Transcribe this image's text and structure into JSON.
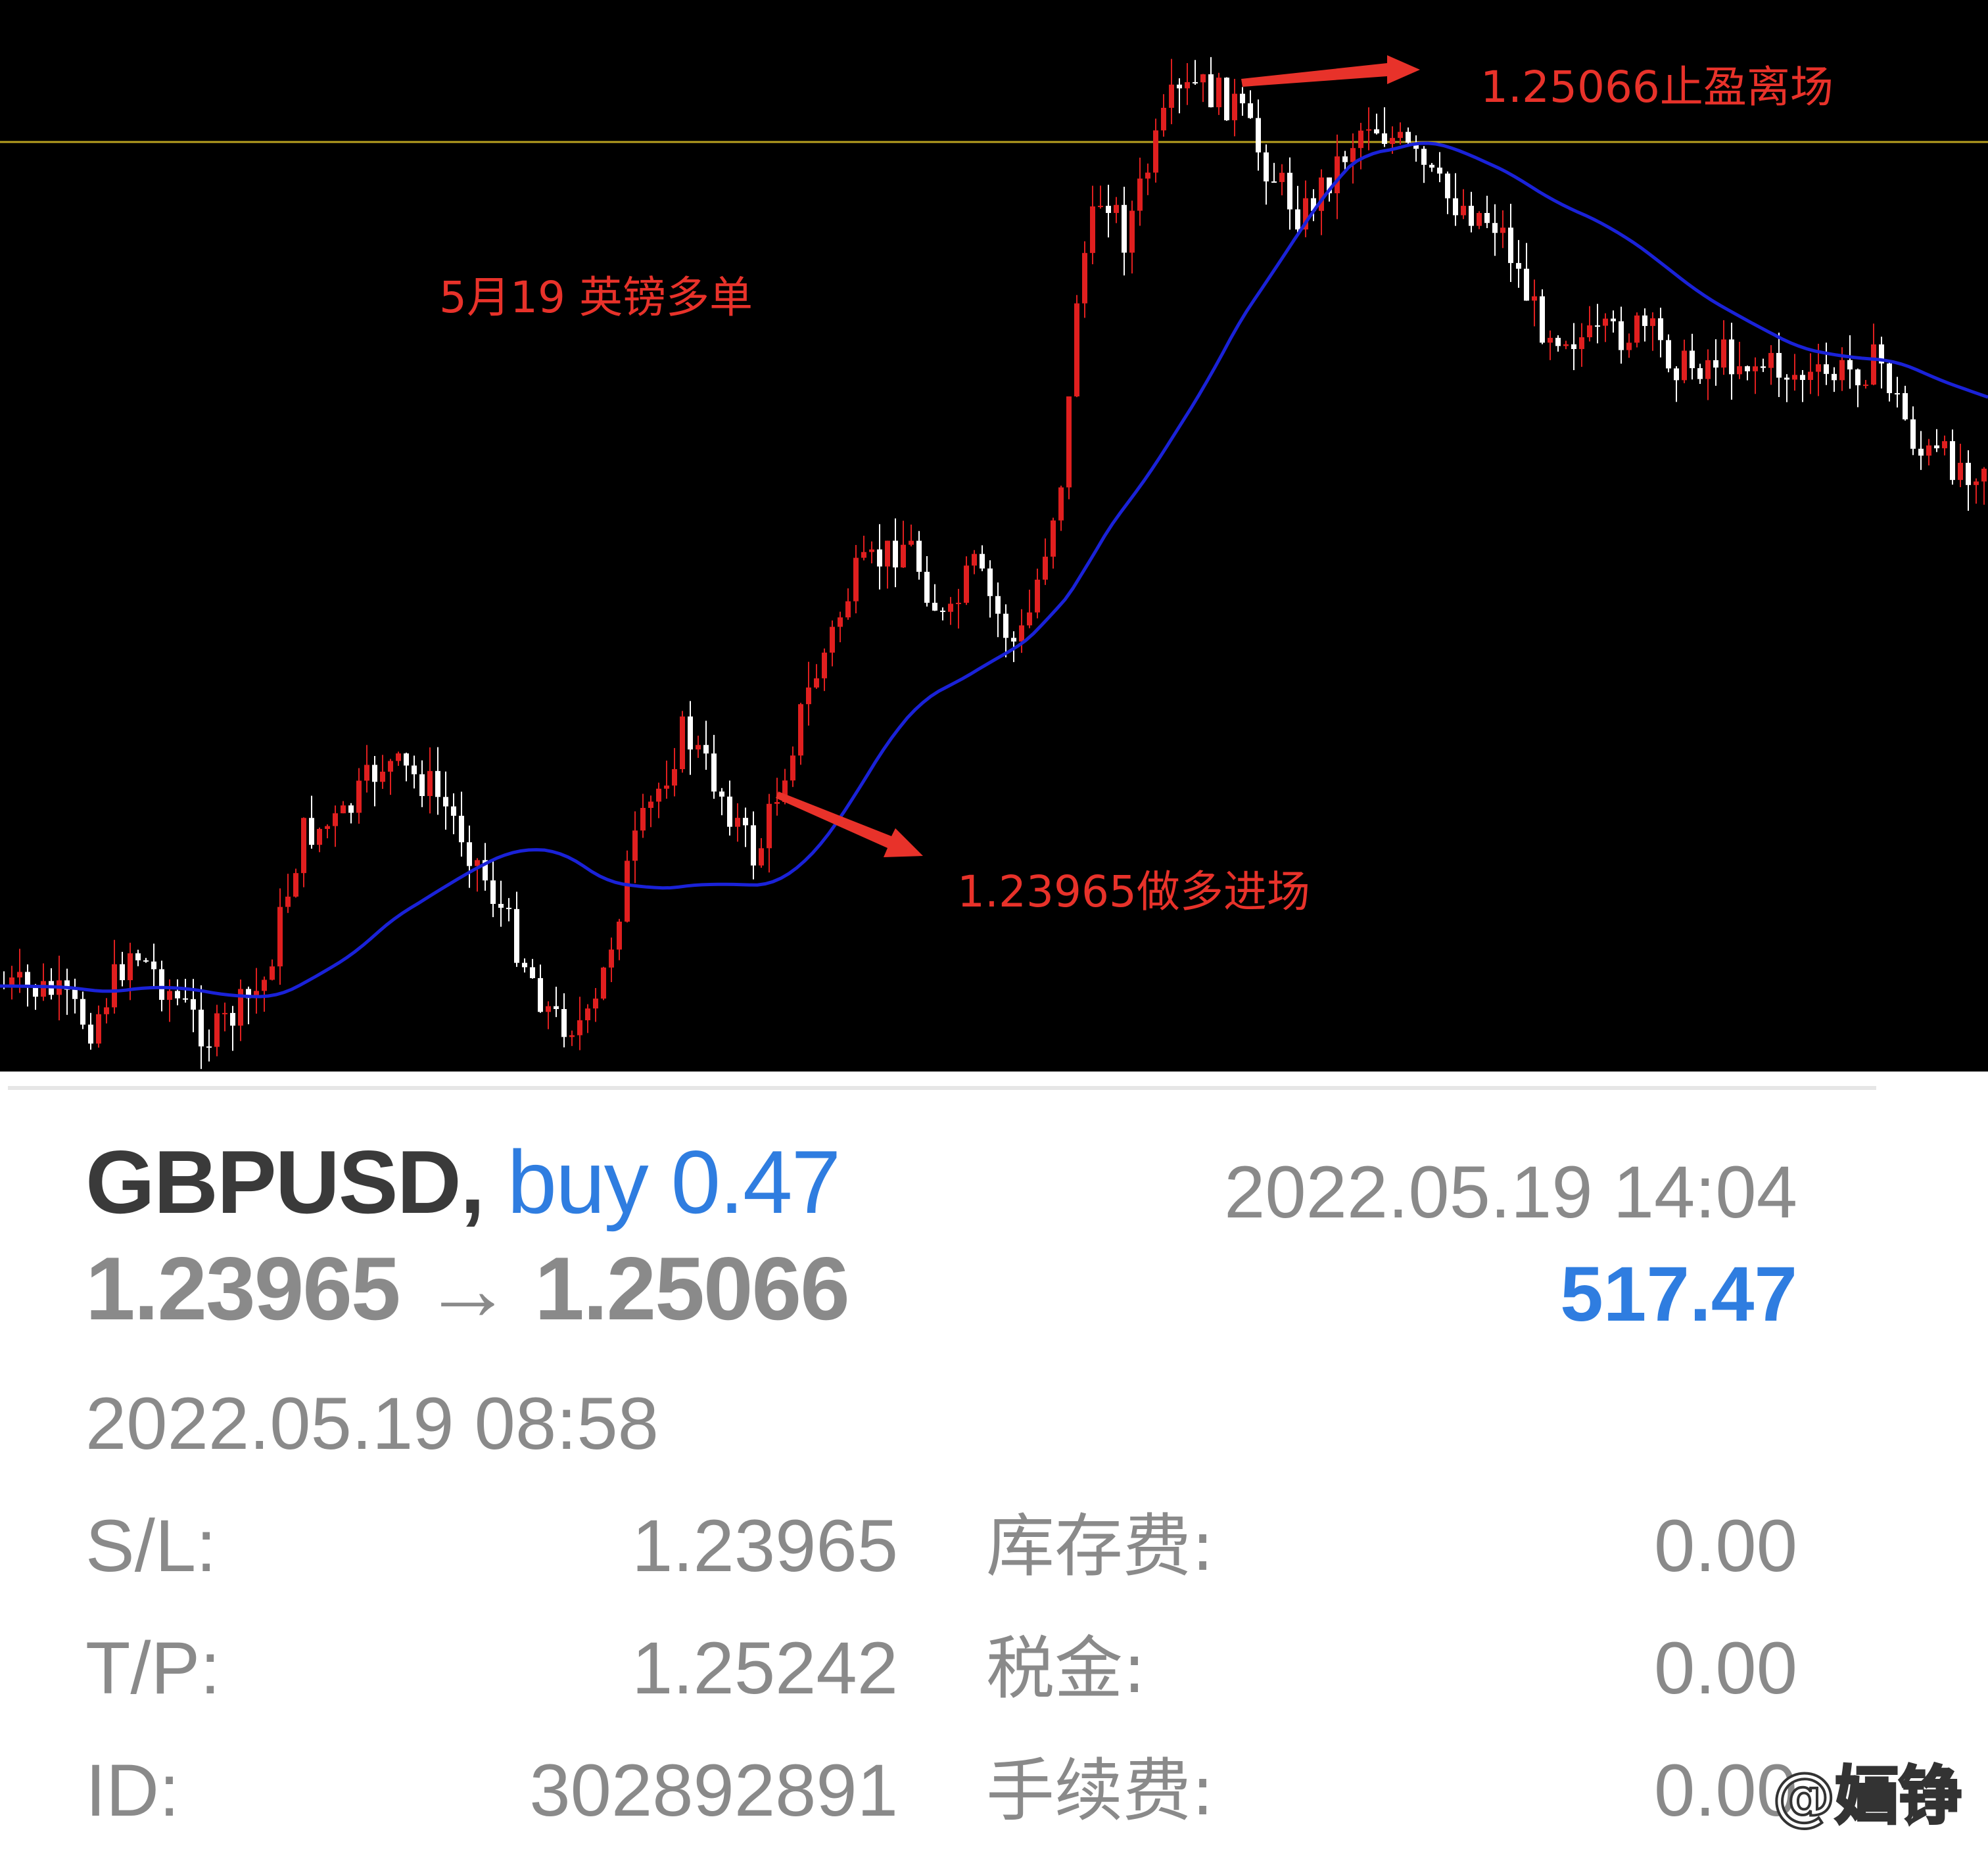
{
  "chart": {
    "title_annotation": "5月19 英镑多单",
    "entry_annotation": "1.23965做多进场",
    "exit_annotation": "1.25066止盈离场",
    "candle_up_color": "#e01f1f",
    "candle_down_color": "#ffffff",
    "ma_color": "#1a22d8",
    "level_line_color": "#b8a020",
    "arrow_color": "#e8322a"
  },
  "order": {
    "symbol": "GBPUSD",
    "comma": ",",
    "type": "buy",
    "volume": "0.47",
    "open_time": "2022.05.19 14:04",
    "open_price": "1.23965",
    "arrow": "→",
    "close_price": "1.25066",
    "profit": "517.47",
    "close_time": "2022.05.19 08:58",
    "sl_label": "S/L:",
    "sl_value": "1.23965",
    "tp_label": "T/P:",
    "tp_value": "1.25242",
    "id_label": "ID:",
    "id_value": "302892891",
    "swap_label": "库存费:",
    "swap_value": "0.00",
    "tax_label": "税金:",
    "tax_value": "0.00",
    "commission_label": "手续费:",
    "commission_value": "0.00"
  },
  "watermark": "@婳铮"
}
